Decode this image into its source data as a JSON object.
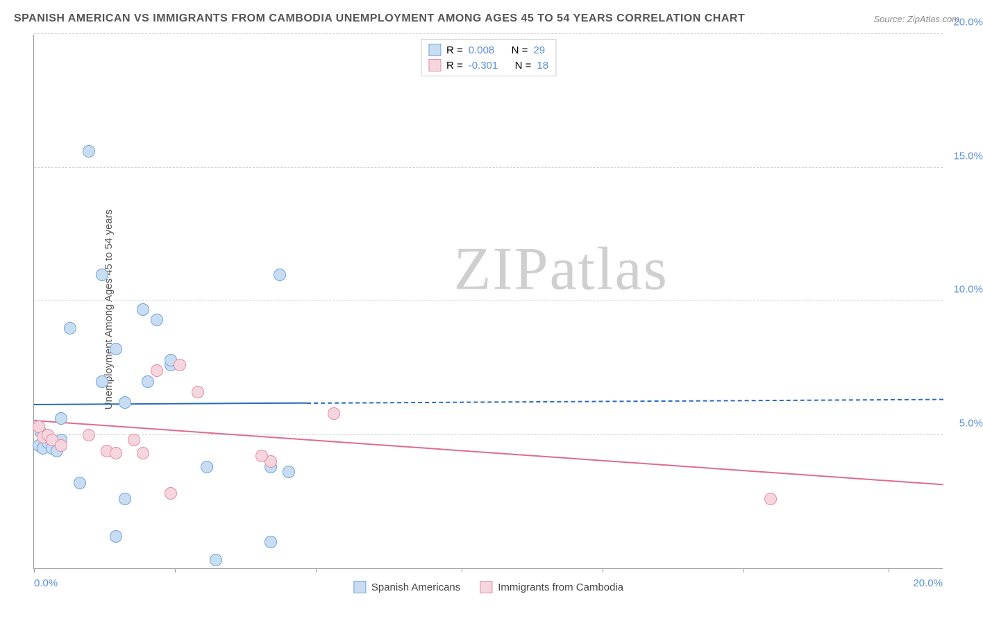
{
  "title": "SPANISH AMERICAN VS IMMIGRANTS FROM CAMBODIA UNEMPLOYMENT AMONG AGES 45 TO 54 YEARS CORRELATION CHART",
  "source_label": "Source: ZipAtlas.com",
  "ylabel": "Unemployment Among Ages 45 to 54 years",
  "watermark": "ZIPatlas",
  "chart": {
    "type": "scatter",
    "xlim": [
      0,
      20
    ],
    "ylim": [
      0,
      20
    ],
    "xtick_labels": [
      "0.0%",
      "20.0%"
    ],
    "ytick_labels": [
      {
        "v": 5,
        "t": "5.0%"
      },
      {
        "v": 10,
        "t": "10.0%"
      },
      {
        "v": 15,
        "t": "15.0%"
      },
      {
        "v": 20,
        "t": "20.0%"
      }
    ],
    "x_tick_minor_positions": [
      0,
      3.1,
      6.2,
      9.4,
      12.5,
      15.6,
      18.8
    ],
    "grid_color": "#d0d0d0",
    "background_color": "#ffffff",
    "point_radius": 9,
    "series": [
      {
        "name": "Spanish Americans",
        "color_fill": "#c9ddf2",
        "color_stroke": "#6fa3d8",
        "regression": {
          "slope": 0.01,
          "intercept": 6.1,
          "R": "0.008",
          "N": "29",
          "solid_to_x": 6.0,
          "line_color": "#2a6ac2",
          "line_width": 2
        },
        "points": [
          [
            0.1,
            4.6
          ],
          [
            0.2,
            4.5
          ],
          [
            0.2,
            5.0
          ],
          [
            0.3,
            4.7
          ],
          [
            0.4,
            4.5
          ],
          [
            0.5,
            4.4
          ],
          [
            0.6,
            4.8
          ],
          [
            0.6,
            5.6
          ],
          [
            0.8,
            9.0
          ],
          [
            1.0,
            3.2
          ],
          [
            1.2,
            15.6
          ],
          [
            1.5,
            7.0
          ],
          [
            1.5,
            11.0
          ],
          [
            1.8,
            8.2
          ],
          [
            1.8,
            1.2
          ],
          [
            2.0,
            2.6
          ],
          [
            2.0,
            6.2
          ],
          [
            2.4,
            9.7
          ],
          [
            2.5,
            7.0
          ],
          [
            2.7,
            9.3
          ],
          [
            3.0,
            7.6
          ],
          [
            3.0,
            7.8
          ],
          [
            3.8,
            3.8
          ],
          [
            4.0,
            0.3
          ],
          [
            5.2,
            1.0
          ],
          [
            5.2,
            3.8
          ],
          [
            5.4,
            11.0
          ],
          [
            5.6,
            3.6
          ],
          [
            0.15,
            5.1
          ]
        ]
      },
      {
        "name": "Immigrants from Cambodia",
        "color_fill": "#f6d6de",
        "color_stroke": "#e28ba5",
        "regression": {
          "slope": -0.12,
          "intercept": 5.5,
          "R": "-0.301",
          "N": "18",
          "solid_to_x": 20.0,
          "line_color": "#e06b8f",
          "line_width": 2.5
        },
        "points": [
          [
            0.1,
            5.3
          ],
          [
            0.2,
            4.9
          ],
          [
            0.3,
            5.0
          ],
          [
            0.4,
            4.8
          ],
          [
            0.6,
            4.6
          ],
          [
            1.2,
            5.0
          ],
          [
            1.6,
            4.4
          ],
          [
            1.8,
            4.3
          ],
          [
            2.2,
            4.8
          ],
          [
            2.4,
            4.3
          ],
          [
            2.7,
            7.4
          ],
          [
            3.0,
            2.8
          ],
          [
            3.2,
            7.6
          ],
          [
            3.6,
            6.6
          ],
          [
            5.2,
            4.0
          ],
          [
            6.6,
            5.8
          ],
          [
            5.0,
            4.2
          ],
          [
            16.2,
            2.6
          ]
        ]
      }
    ],
    "legend_top": {
      "rows": [
        {
          "swatch_fill": "#c9ddf2",
          "swatch_stroke": "#6fa3d8",
          "r_label": "R =",
          "r_val": "0.008",
          "n_label": "N =",
          "n_val": "29"
        },
        {
          "swatch_fill": "#f6d6de",
          "swatch_stroke": "#e28ba5",
          "r_label": "R =",
          "r_val": "-0.301",
          "n_label": "N =",
          "n_val": "18"
        }
      ]
    },
    "legend_bottom": [
      {
        "swatch_fill": "#c9ddf2",
        "swatch_stroke": "#6fa3d8",
        "label": "Spanish Americans"
      },
      {
        "swatch_fill": "#f6d6de",
        "swatch_stroke": "#e28ba5",
        "label": "Immigrants from Cambodia"
      }
    ]
  }
}
